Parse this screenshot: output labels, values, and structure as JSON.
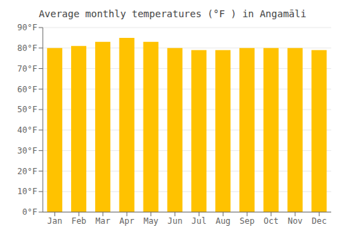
{
  "chart_data": {
    "type": "bar",
    "title": "Average monthly temperatures (°F ) in Angamāli",
    "categories": [
      "Jan",
      "Feb",
      "Mar",
      "Apr",
      "May",
      "Jun",
      "Jul",
      "Aug",
      "Sep",
      "Oct",
      "Nov",
      "Dec"
    ],
    "values": [
      80,
      81,
      83,
      85,
      83,
      80,
      79,
      79,
      80,
      80,
      80,
      79
    ],
    "color": "#ffc200",
    "ylim": [
      0,
      90
    ],
    "yticks": [
      {
        "value": 0,
        "label": "0°F"
      },
      {
        "value": 10,
        "label": "10°F"
      },
      {
        "value": 20,
        "label": "20°F"
      },
      {
        "value": 30,
        "label": "30°F"
      },
      {
        "value": 40,
        "label": "40°F"
      },
      {
        "value": 50,
        "label": "50°F"
      },
      {
        "value": 60,
        "label": "60°F"
      },
      {
        "value": 70,
        "label": "70°F"
      },
      {
        "value": 80,
        "label": "80°F"
      },
      {
        "value": 90,
        "label": "90°F"
      }
    ],
    "grid": true
  }
}
